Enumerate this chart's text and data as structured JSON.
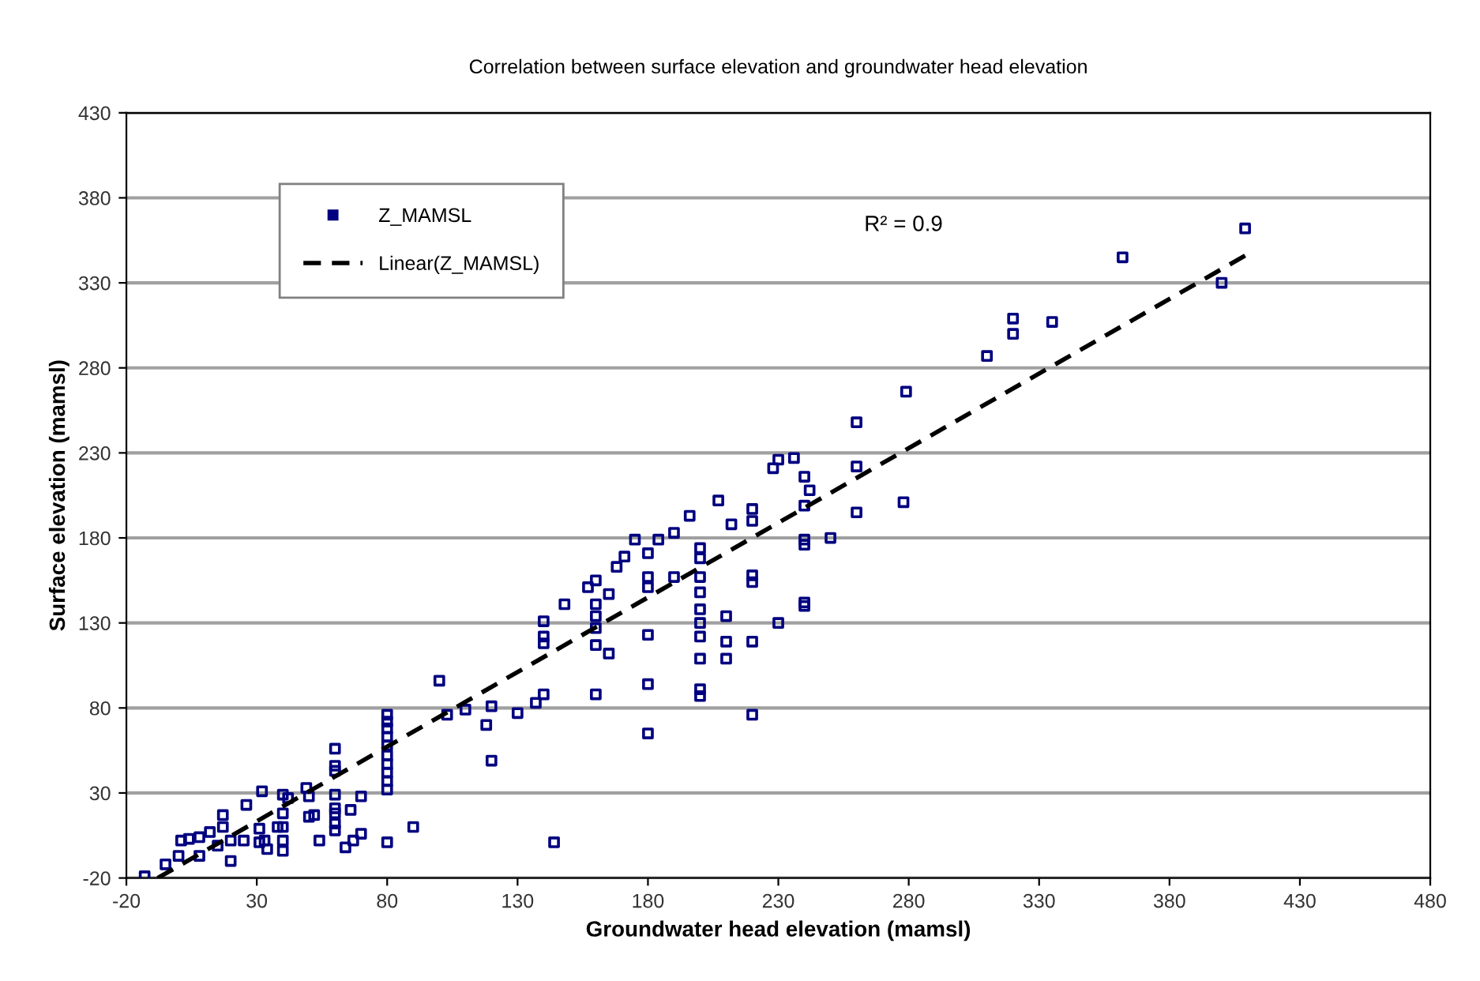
{
  "chart_data": {
    "type": "scatter",
    "title": "Correlation between surface elevation and groundwater head elevation",
    "xlabel": "Groundwater head elevation (mamsl)",
    "ylabel": "Surface elevation (mamsl)",
    "annotations": [
      "R² = 0.9"
    ],
    "series": [
      {
        "name": "Z_MAMSL",
        "color": "#000080",
        "marker": "square",
        "x": [
          -13,
          -5,
          0,
          8,
          1,
          4,
          8,
          12,
          17,
          17,
          20,
          20,
          15,
          26,
          25,
          31,
          31,
          33,
          34,
          32,
          38,
          40,
          40,
          40,
          40,
          40,
          42,
          49,
          50,
          50,
          52,
          54,
          60,
          60,
          60,
          60,
          60,
          60,
          60,
          60,
          66,
          64,
          67,
          70,
          70,
          80,
          80,
          80,
          80,
          80,
          80,
          80,
          80,
          80,
          80,
          80,
          90,
          100,
          103,
          110,
          118,
          120,
          120,
          130,
          137,
          140,
          140,
          140,
          140,
          144,
          148,
          157,
          160,
          160,
          160,
          160,
          160,
          160,
          165,
          165,
          168,
          171,
          175,
          180,
          180,
          180,
          180,
          180,
          180,
          184,
          190,
          190,
          196,
          200,
          200,
          200,
          200,
          200,
          200,
          200,
          200,
          200,
          200,
          207,
          210,
          210,
          210,
          212,
          220,
          220,
          220,
          220,
          220,
          220,
          228,
          230,
          230,
          236,
          240,
          242,
          240,
          240,
          240,
          240,
          240,
          250,
          260,
          260,
          260,
          278,
          279,
          310,
          320,
          320,
          335,
          362,
          400,
          409
        ],
        "values": [
          -19,
          -12,
          -7,
          -7,
          2,
          3,
          4,
          7,
          10,
          17,
          2,
          -10,
          -1,
          23,
          2,
          9,
          1,
          2,
          -3,
          31,
          10,
          10,
          18,
          29,
          2,
          -4,
          27,
          33,
          28,
          16,
          17,
          2,
          56,
          46,
          43,
          29,
          21,
          18,
          12,
          8,
          20,
          -2,
          2,
          6,
          28,
          1,
          76,
          72,
          68,
          63,
          58,
          52,
          47,
          42,
          37,
          32,
          10,
          96,
          76,
          79,
          70,
          81,
          49,
          77,
          83,
          88,
          131,
          122,
          118,
          1,
          141,
          151,
          141,
          134,
          127,
          117,
          88,
          155,
          147,
          112,
          163,
          169,
          179,
          157,
          151,
          123,
          94,
          65,
          171,
          179,
          157,
          183,
          193,
          168,
          157,
          148,
          138,
          130,
          122,
          109,
          87,
          91,
          174,
          202,
          134,
          119,
          109,
          188,
          197,
          190,
          158,
          154,
          119,
          76,
          221,
          226,
          130,
          227,
          216,
          208,
          199,
          179,
          176,
          142,
          140,
          180,
          248,
          222,
          195,
          201,
          266,
          287,
          309,
          300,
          307,
          345,
          330,
          362
        ]
      },
      {
        "name": "Linear(Z_MAMSL)",
        "type": "line",
        "color": "#000000",
        "line_style": "dashed",
        "marker": "none",
        "x": [
          -8,
          409
        ],
        "values": [
          -20,
          346
        ]
      }
    ],
    "xlim": [
      -20,
      480
    ],
    "ylim": [
      -20,
      430
    ],
    "xticks": [
      -20,
      30,
      80,
      130,
      180,
      230,
      280,
      330,
      380,
      430,
      480
    ],
    "yticks": [
      -20,
      30,
      80,
      130,
      180,
      230,
      280,
      330,
      380,
      430
    ],
    "grid": "y",
    "legend": "top left"
  }
}
